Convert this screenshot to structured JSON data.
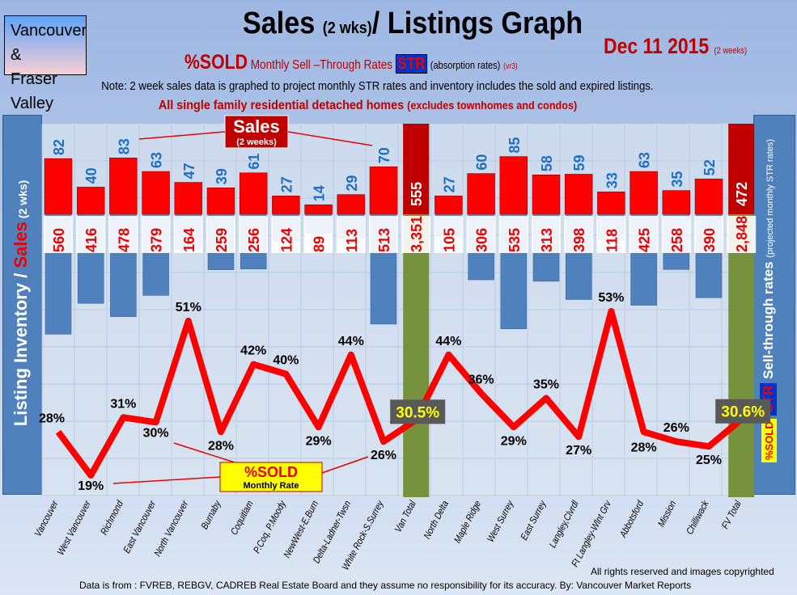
{
  "header": {
    "region": [
      "Vancouver &",
      "Fraser Valley"
    ],
    "title_main": "Sales",
    "title_small": "(2 wks)",
    "title_rest": "/ Listings Graph",
    "date": "Dec 11 2015",
    "date_note": "(2 weeks)",
    "sold_label": "%SOLD",
    "str_desc": "Monthly Sell –Through Rates",
    "str": "STR",
    "absorption": "(absorption rates)",
    "version": "(vr3)",
    "note": "Note: 2 week sales data is graphed to project monthly STR rates and inventory includes the sold and expired listings.",
    "single": "All single family residential detached homes",
    "single_small": "(excludes townhomes and condos)"
  },
  "left_axis": {
    "a": "Listing Inventory / ",
    "b": "Sales",
    "c": " (2 wks)"
  },
  "right_axis": {
    "a": "Sell-through rates",
    "b": "(projected monthly STR rates)",
    "str": "STR",
    "sold": "%SOLD"
  },
  "annotations": {
    "sales": "Sales",
    "sales_sub": "(2 weeks)",
    "sold": "%SOLD",
    "sold_sub": "Monthly Rate"
  },
  "footer": {
    "rights": "All rights reserved and  images copyrighted",
    "source": "Data is from : FVREB, REBGV, CADREB Real Estate Board and they assume no responsibility for its accuracy. By: Vancouver Market Reports"
  },
  "colors": {
    "sales": "#ff0000",
    "listings": "#4f81bd",
    "total": "#76923c",
    "line": "#ff0000"
  },
  "chart_data": {
    "type": "bar+line",
    "categories": [
      "Vancouver",
      "West Vancouver",
      "Richmond",
      "East Vancouver",
      "North Vancouver",
      "Burnaby",
      "Coquitlam",
      "P.Coq, P.Moody",
      "NewWest-E.Burn",
      "Delta-Ladner-Twsn",
      "White Rock-S.Surrey",
      "Van Total",
      "North Delta",
      "Maple Ridge",
      "West Surrey",
      "East Surrey",
      "Langley,Clvrdl",
      "Ft Langley-Wlnt Grv",
      "Abbotsford",
      "Mission",
      "Chilliwack",
      "FV Total"
    ],
    "sales": [
      82,
      40,
      83,
      63,
      47,
      39,
      61,
      27,
      14,
      29,
      70,
      555,
      27,
      60,
      85,
      58,
      59,
      33,
      63,
      35,
      52,
      472
    ],
    "listings": [
      560,
      416,
      478,
      379,
      164,
      259,
      256,
      124,
      89,
      113,
      513,
      3351,
      105,
      306,
      535,
      313,
      398,
      118,
      425,
      258,
      390,
      2848
    ],
    "listings_labels": [
      "560",
      "416",
      "478",
      "379",
      "164",
      "259",
      "256",
      "124",
      "89",
      "113",
      "513",
      "3,351",
      "105",
      "306",
      "535",
      "313",
      "398",
      "118",
      "425",
      "258",
      "390",
      "2,848"
    ],
    "str_percent": [
      28,
      19,
      31,
      30,
      51,
      28,
      42,
      40,
      29,
      44,
      26,
      30.5,
      44,
      36,
      29,
      35,
      27,
      53,
      28,
      26,
      25,
      30.6
    ],
    "str_labels": [
      "28%",
      "19%",
      "31%",
      "30%",
      "51%",
      "28%",
      "42%",
      "40%",
      "29%",
      "44%",
      "26%",
      "30.5%",
      "44%",
      "36%",
      "29%",
      "35%",
      "27%",
      "53%",
      "28%",
      "26%",
      "25%",
      "30.6%"
    ],
    "totals": [
      "Van Total",
      "FV Total"
    ]
  }
}
